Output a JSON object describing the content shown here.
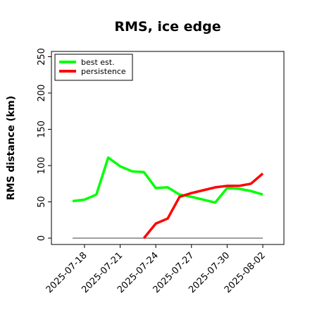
{
  "chart_data": {
    "type": "line",
    "title": "RMS, ice edge",
    "ylabel": "RMS distance (km)",
    "xlabel": "",
    "ylim": [
      0,
      255
    ],
    "yticks": [
      0,
      50,
      100,
      150,
      200,
      250
    ],
    "xtick_labels": [
      "2025-07-18",
      "2025-07-21",
      "2025-07-24",
      "2025-07-27",
      "2025-07-30",
      "2025-08-02"
    ],
    "legend_position": "top-left",
    "grid": false,
    "x": [
      "2025-07-17",
      "2025-07-18",
      "2025-07-19",
      "2025-07-20",
      "2025-07-21",
      "2025-07-22",
      "2025-07-23",
      "2025-07-24",
      "2025-07-25",
      "2025-07-26",
      "2025-07-27",
      "2025-07-28",
      "2025-07-29",
      "2025-07-30",
      "2025-07-31",
      "2025-08-01",
      "2025-08-02"
    ],
    "series": [
      {
        "name": "best est.",
        "color": "#00ff00",
        "values": [
          51,
          53,
          60,
          111,
          99,
          92,
          91,
          69,
          70,
          60,
          57,
          53,
          49,
          69,
          68,
          65,
          60
        ]
      },
      {
        "name": "persistence",
        "color": "#ff0000",
        "values": [
          null,
          null,
          null,
          null,
          null,
          null,
          0,
          20,
          27,
          57,
          62,
          66,
          70,
          72,
          72,
          75,
          89
        ]
      },
      {
        "name": "",
        "color": "#808080",
        "values": [
          0,
          0,
          0,
          0,
          0,
          0,
          0,
          0,
          0,
          0,
          0,
          0,
          0,
          0,
          0,
          0,
          0
        ]
      }
    ]
  }
}
